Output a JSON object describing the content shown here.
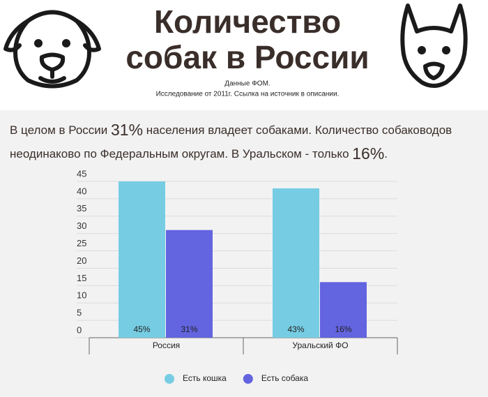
{
  "header": {
    "title_lines": [
      "Количество",
      "собак в России"
    ],
    "source_lines": [
      "Данные ФОМ.",
      "Исследование от 2011г. Ссылка на источник в описании."
    ]
  },
  "intro": {
    "line1": [
      "В целом в России ",
      "31%",
      " населения владеет собаками. Количество собаководов"
    ],
    "line2": [
      "неодинаково по Федеральным округам. В Уральском - только ",
      "16%",
      "."
    ]
  },
  "chart_data": {
    "type": "bar",
    "categories": [
      "Россия",
      "Уральский ФО"
    ],
    "series": [
      {
        "name": "Есть кошка",
        "color": "#76cde3",
        "values": [
          45,
          43
        ],
        "value_labels": [
          "45%",
          "43%"
        ]
      },
      {
        "name": "Есть собака",
        "color": "#6364e0",
        "values": [
          31,
          16
        ],
        "value_labels": [
          "31%",
          "16%"
        ]
      }
    ],
    "ylim": [
      0,
      45
    ],
    "yticks": [
      0,
      5,
      10,
      15,
      20,
      25,
      30,
      35,
      40,
      45
    ],
    "grid": true,
    "legend": "bottom"
  }
}
